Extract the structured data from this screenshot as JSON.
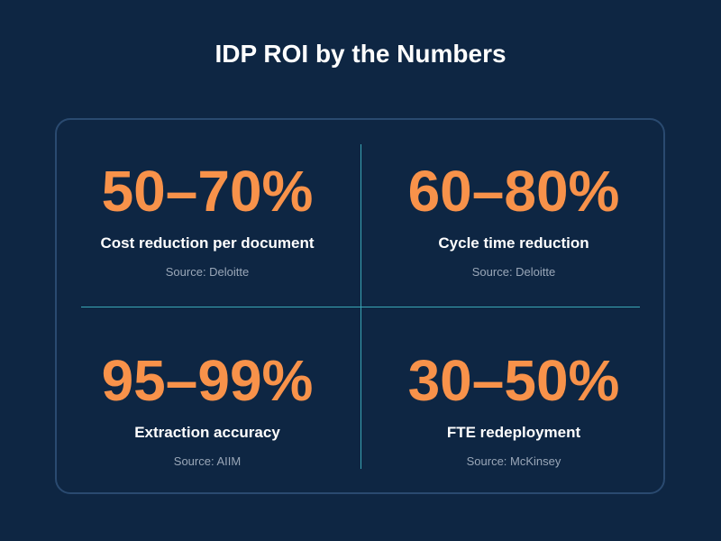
{
  "title": "IDP ROI by the Numbers",
  "stats": [
    {
      "value": "50–70%",
      "label": "Cost reduction per document",
      "source": "Source: Deloitte"
    },
    {
      "value": "60–80%",
      "label": "Cycle time reduction",
      "source": "Source: Deloitte"
    },
    {
      "value": "95–99%",
      "label": "Extraction accuracy",
      "source": "Source: AIIM"
    },
    {
      "value": "30–50%",
      "label": "FTE redeployment",
      "source": "Source: McKinsey"
    }
  ],
  "colors": {
    "background": "#0e2643",
    "accent": "#f8924a",
    "divider": "#3aa6b5",
    "panel_border": "#2a4a70",
    "source_text": "#9aa7b8"
  }
}
